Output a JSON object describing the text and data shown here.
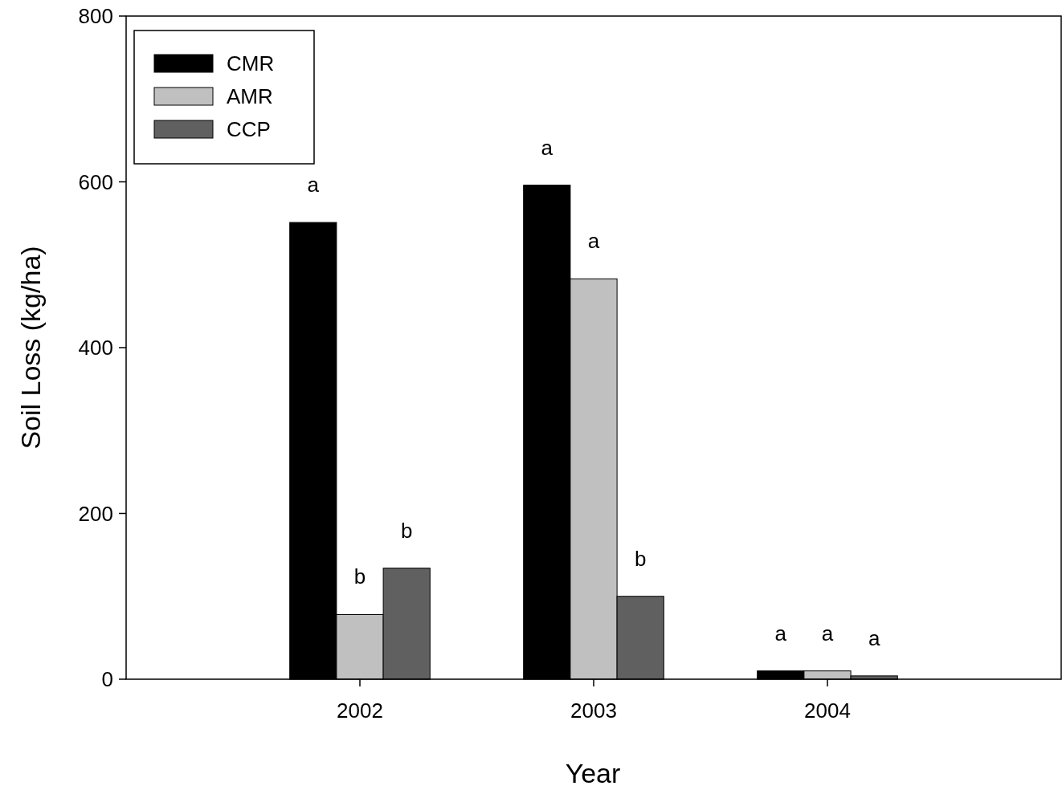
{
  "chart_data": {
    "type": "bar",
    "xlabel": "Year",
    "ylabel": "Soil Loss (kg/ha)",
    "x": [
      2002,
      2003,
      2004
    ],
    "xlim": [
      2001,
      2005
    ],
    "xticks": [
      2002,
      2003,
      2004
    ],
    "ylim": [
      0,
      800
    ],
    "yticks": [
      0,
      200,
      400,
      600,
      800
    ],
    "grid": false,
    "legend": "top left",
    "series": [
      {
        "name": "CMR",
        "color": "#000000",
        "values": [
          551,
          596,
          10
        ]
      },
      {
        "name": "AMR",
        "color": "#c0c0c0",
        "values": [
          78,
          483,
          10
        ]
      },
      {
        "name": "CCP",
        "color": "#606060",
        "values": [
          134,
          100,
          4
        ]
      }
    ],
    "annotations": [
      {
        "text": "a",
        "x": 2001.8,
        "y": 551
      },
      {
        "text": "b",
        "x": 2002,
        "y": 78
      },
      {
        "text": "b",
        "x": 2002.2,
        "y": 134
      },
      {
        "text": "a",
        "x": 2002.8,
        "y": 596
      },
      {
        "text": "a",
        "x": 2003,
        "y": 483
      },
      {
        "text": "b",
        "x": 2003.2,
        "y": 100
      },
      {
        "text": "a",
        "x": 2003.8,
        "y": 10
      },
      {
        "text": "a",
        "x": 2004,
        "y": 10
      },
      {
        "text": "a",
        "x": 2004.2,
        "y": 4
      }
    ]
  }
}
